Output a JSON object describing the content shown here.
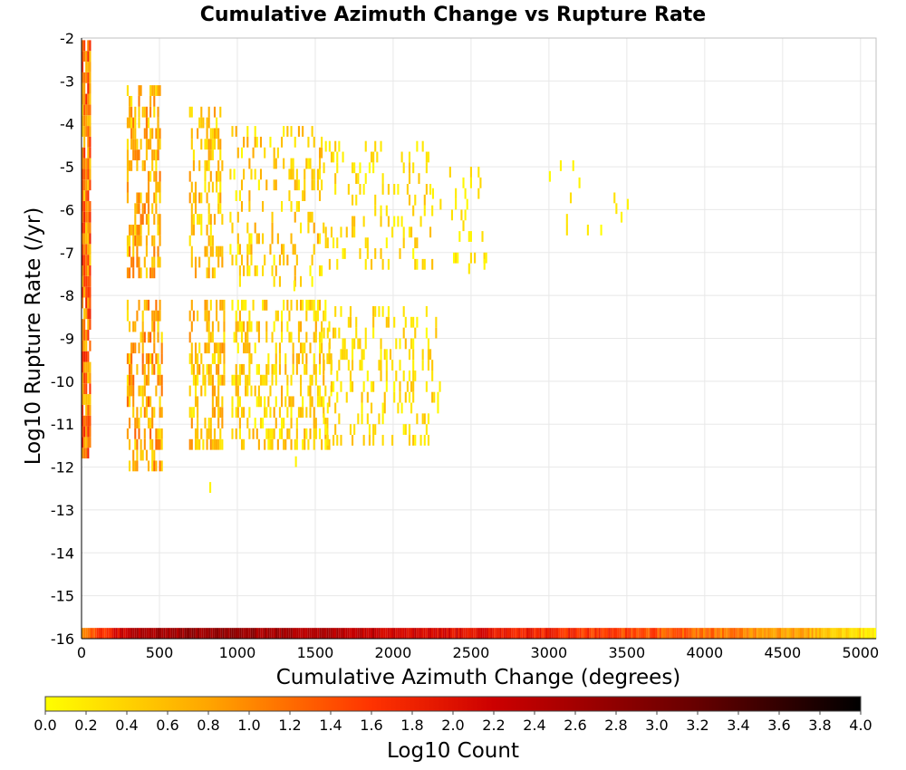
{
  "chart_data": {
    "type": "heatmap",
    "title": "Cumulative Azimuth Change vs Rupture Rate",
    "xlabel": "Cumulative Azimuth Change (degrees)",
    "ylabel": "Log10 Rupture Rate (/yr)",
    "xlim": [
      0,
      5100
    ],
    "ylim": [
      -16,
      -2
    ],
    "x_ticks": [
      "0",
      "500",
      "1000",
      "1500",
      "2000",
      "2500",
      "3000",
      "3500",
      "4000",
      "4500",
      "5000"
    ],
    "y_ticks": [
      "-2",
      "-3",
      "-4",
      "-5",
      "-6",
      "-7",
      "-8",
      "-9",
      "-10",
      "-11",
      "-12",
      "-13",
      "-14",
      "-15",
      "-16"
    ],
    "grid": true,
    "colorbar": {
      "label": "Log10 Count",
      "range": [
        0.0,
        4.0
      ],
      "ticks": [
        "0.0",
        "0.2",
        "0.4",
        "0.6",
        "0.8",
        "1.0",
        "1.2",
        "1.4",
        "1.6",
        "1.8",
        "2.0",
        "2.2",
        "2.4",
        "2.6",
        "2.8",
        "3.0",
        "3.2",
        "3.4",
        "3.6",
        "3.8",
        "4.0"
      ],
      "colors": [
        "#ffff00",
        "#ffa500",
        "#ff3300",
        "#cc0000",
        "#660000",
        "#000000"
      ]
    },
    "clusters": [
      {
        "x": [
          0,
          60
        ],
        "y": [
          -11.8,
          -2.1
        ],
        "log_count": [
          0.4,
          1.8
        ],
        "density": 0.9
      },
      {
        "x": [
          290,
          500
        ],
        "y": [
          -7.6,
          -3.2
        ],
        "log_count": [
          0.2,
          1.2
        ],
        "density": 0.45
      },
      {
        "x": [
          290,
          520
        ],
        "y": [
          -12.1,
          -8.1
        ],
        "log_count": [
          0.2,
          1.3
        ],
        "density": 0.45
      },
      {
        "x": [
          690,
          900
        ],
        "y": [
          -7.6,
          -3.8
        ],
        "log_count": [
          0.1,
          0.9
        ],
        "density": 0.35
      },
      {
        "x": [
          690,
          920
        ],
        "y": [
          -11.6,
          -8.1
        ],
        "log_count": [
          0.1,
          1.0
        ],
        "density": 0.45
      },
      {
        "x": [
          950,
          1550
        ],
        "y": [
          -7.8,
          -4.2
        ],
        "log_count": [
          0.0,
          0.8
        ],
        "density": 0.2
      },
      {
        "x": [
          950,
          1600
        ],
        "y": [
          -11.6,
          -8.3
        ],
        "log_count": [
          0.0,
          0.8
        ],
        "density": 0.32
      },
      {
        "x": [
          1550,
          2250
        ],
        "y": [
          -7.4,
          -4.5
        ],
        "log_count": [
          0.0,
          0.6
        ],
        "density": 0.13
      },
      {
        "x": [
          1550,
          2300
        ],
        "y": [
          -11.5,
          -8.4
        ],
        "log_count": [
          0.0,
          0.6
        ],
        "density": 0.2
      },
      {
        "x": [
          2250,
          2600
        ],
        "y": [
          -7.5,
          -5.0
        ],
        "log_count": [
          0.0,
          0.4
        ],
        "density": 0.08
      },
      {
        "x": [
          3000,
          3500
        ],
        "y": [
          -6.6,
          -4.9
        ],
        "log_count": [
          0.0,
          0.3
        ],
        "density": 0.04
      }
    ],
    "isolated_cells": [
      {
        "x": 820,
        "y": -12.6,
        "log_count": 0.1
      },
      {
        "x": 1370,
        "y": -12.0,
        "log_count": 0.1
      },
      {
        "x": 1360,
        "y": -7.9,
        "log_count": 0.1
      },
      {
        "x": 2580,
        "y": -7.4,
        "log_count": 0.1
      },
      {
        "x": 3070,
        "y": -5.1,
        "log_count": 0.1
      },
      {
        "x": 3150,
        "y": -5.1,
        "log_count": 0.1
      },
      {
        "x": 3190,
        "y": -5.5,
        "log_count": 0.1
      },
      {
        "x": 3460,
        "y": -6.3,
        "log_count": 0.1
      },
      {
        "x": 3500,
        "y": -6.0,
        "log_count": 0.1
      }
    ],
    "bottom_row": {
      "y": -16,
      "x_range": [
        0,
        5100
      ],
      "log_count_profile": [
        [
          0,
          1.0
        ],
        [
          300,
          2.4
        ],
        [
          800,
          2.8
        ],
        [
          1500,
          2.5
        ],
        [
          2500,
          2.0
        ],
        [
          3500,
          1.5
        ],
        [
          4500,
          0.9
        ],
        [
          5100,
          0.2
        ]
      ]
    }
  }
}
